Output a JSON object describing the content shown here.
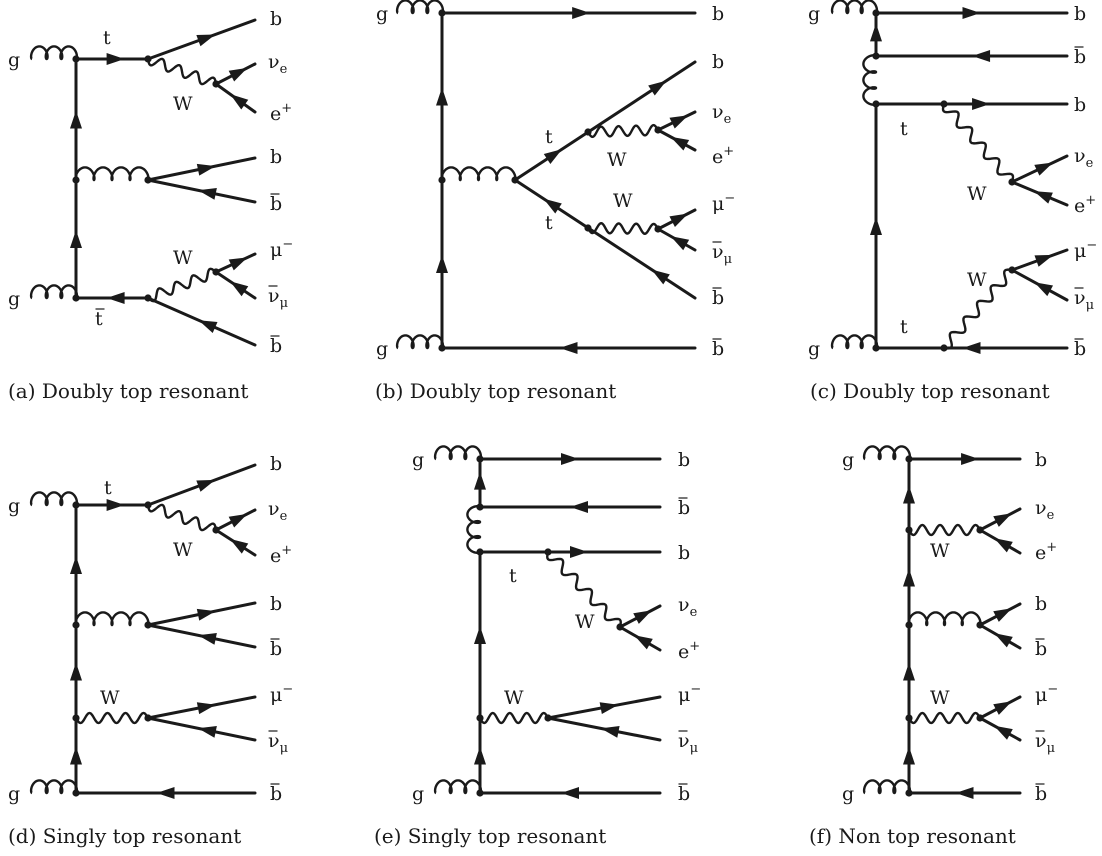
{
  "labels": {
    "gluon": "g",
    "top": "t",
    "antitop": "t",
    "w": "W",
    "b": "b",
    "bbar": "b",
    "nu_e": "ν",
    "nu_e_sub": "e",
    "positron": "e",
    "positron_sup": "+",
    "muon": "μ",
    "muon_sup": "−",
    "nubar_mu": "ν",
    "nubar_mu_sub": "μ"
  },
  "diagrams": [
    {
      "id": "a",
      "caption": "(a) Doubly top resonant"
    },
    {
      "id": "b",
      "caption": "(b) Doubly top resonant"
    },
    {
      "id": "c",
      "caption": "(c) Doubly top resonant"
    },
    {
      "id": "d",
      "caption": "(d) Singly top resonant"
    },
    {
      "id": "e",
      "caption": "(e) Singly top resonant"
    },
    {
      "id": "f",
      "caption": "(f) Non top resonant"
    }
  ]
}
